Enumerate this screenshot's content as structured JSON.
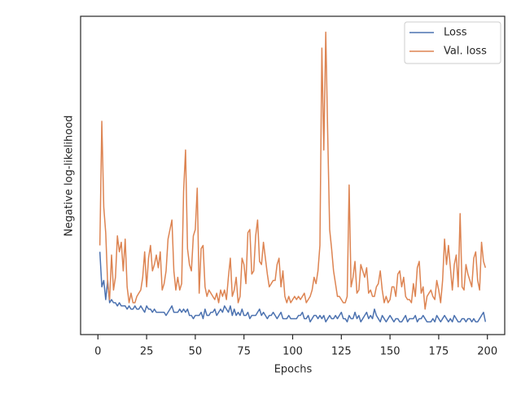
{
  "chart_data": {
    "type": "line",
    "xlabel": "Epochs",
    "ylabel": "Negative log-likelihood",
    "x": [
      1,
      2,
      3,
      4,
      5,
      6,
      7,
      8,
      9,
      10,
      11,
      12,
      13,
      14,
      15,
      16,
      17,
      18,
      19,
      20,
      21,
      22,
      23,
      24,
      25,
      26,
      27,
      28,
      29,
      30,
      31,
      32,
      33,
      34,
      35,
      36,
      37,
      38,
      39,
      40,
      41,
      42,
      43,
      44,
      45,
      46,
      47,
      48,
      49,
      50,
      51,
      52,
      53,
      54,
      55,
      56,
      57,
      58,
      59,
      60,
      61,
      62,
      63,
      64,
      65,
      66,
      67,
      68,
      69,
      70,
      71,
      72,
      73,
      74,
      75,
      76,
      77,
      78,
      79,
      80,
      81,
      82,
      83,
      84,
      85,
      86,
      87,
      88,
      89,
      90,
      91,
      92,
      93,
      94,
      95,
      96,
      97,
      98,
      99,
      100,
      101,
      102,
      103,
      104,
      105,
      106,
      107,
      108,
      109,
      110,
      111,
      112,
      113,
      114,
      115,
      116,
      117,
      118,
      119,
      120,
      121,
      122,
      123,
      124,
      125,
      126,
      127,
      128,
      129,
      130,
      131,
      132,
      133,
      134,
      135,
      136,
      137,
      138,
      139,
      140,
      141,
      142,
      143,
      144,
      145,
      146,
      147,
      148,
      149,
      150,
      151,
      152,
      153,
      154,
      155,
      156,
      157,
      158,
      159,
      160,
      161,
      162,
      163,
      164,
      165,
      166,
      167,
      168,
      169,
      170,
      171,
      172,
      173,
      174,
      175,
      176,
      177,
      178,
      179,
      180,
      181,
      182,
      183,
      184,
      185,
      186,
      187,
      188,
      189,
      190,
      191,
      192,
      193,
      194,
      195,
      196,
      197,
      198,
      199
    ],
    "series": [
      {
        "name": "Loss",
        "color": "#4c72b0",
        "values": [
          26,
          15,
          17,
          11,
          17,
          10,
          11,
          10,
          10,
          9,
          10,
          9,
          9,
          9,
          8,
          9,
          8,
          8,
          9,
          8,
          8,
          9,
          8,
          7,
          9,
          8,
          8,
          7,
          8,
          7,
          7,
          7,
          7,
          7,
          6,
          7,
          8,
          9,
          7,
          7,
          7,
          8,
          7,
          8,
          7,
          8,
          6,
          6,
          5,
          6,
          6,
          6,
          7,
          5,
          8,
          6,
          6,
          7,
          7,
          8,
          6,
          7,
          8,
          7,
          9,
          8,
          7,
          9,
          6,
          8,
          6,
          7,
          6,
          8,
          6,
          6,
          7,
          5,
          6,
          6,
          6,
          7,
          8,
          6,
          7,
          6,
          5,
          6,
          6,
          7,
          6,
          5,
          6,
          7,
          5,
          5,
          5,
          6,
          5,
          5,
          5,
          5,
          6,
          6,
          7,
          5,
          5,
          6,
          4,
          5,
          6,
          6,
          5,
          6,
          5,
          6,
          4,
          5,
          6,
          5,
          5,
          6,
          5,
          6,
          7,
          5,
          5,
          4,
          6,
          5,
          5,
          7,
          5,
          6,
          4,
          5,
          6,
          7,
          5,
          6,
          5,
          8,
          6,
          5,
          4,
          6,
          5,
          4,
          5,
          6,
          5,
          4,
          5,
          5,
          4,
          4,
          5,
          6,
          4,
          5,
          5,
          5,
          6,
          4,
          5,
          5,
          6,
          5,
          4,
          4,
          4,
          5,
          4,
          6,
          5,
          4,
          5,
          6,
          5,
          4,
          5,
          4,
          6,
          5,
          4,
          4,
          5,
          5,
          4,
          5,
          5,
          4,
          5,
          4,
          4,
          5,
          6,
          7,
          4
        ]
      },
      {
        "name": "Val. loss",
        "color": "#dd8452",
        "values": [
          28,
          67,
          40,
          32,
          16,
          11,
          25,
          14,
          18,
          31,
          26,
          29,
          20,
          30,
          15,
          10,
          13,
          10,
          10,
          12,
          13,
          14,
          18,
          26,
          15,
          24,
          28,
          20,
          22,
          25,
          21,
          26,
          14,
          16,
          20,
          30,
          33,
          36,
          20,
          14,
          18,
          14,
          16,
          45,
          58,
          27,
          22,
          20,
          31,
          33,
          46,
          13,
          27,
          28,
          15,
          12,
          14,
          13,
          12,
          11,
          13,
          10,
          14,
          12,
          14,
          11,
          18,
          24,
          12,
          14,
          18,
          10,
          12,
          24,
          22,
          16,
          32,
          33,
          19,
          20,
          31,
          36,
          23,
          22,
          29,
          24,
          19,
          15,
          16,
          17,
          17,
          22,
          24,
          15,
          20,
          12,
          10,
          12,
          10,
          11,
          12,
          11,
          12,
          11,
          12,
          13,
          10,
          11,
          12,
          14,
          18,
          16,
          20,
          28,
          90,
          58,
          95,
          63,
          33,
          27,
          20,
          16,
          12,
          12,
          11,
          10,
          10,
          12,
          47,
          15,
          18,
          23,
          13,
          14,
          22,
          20,
          18,
          21,
          13,
          14,
          12,
          12,
          15,
          16,
          20,
          14,
          10,
          12,
          10,
          11,
          15,
          15,
          12,
          19,
          20,
          15,
          18,
          12,
          11,
          11,
          10,
          16,
          12,
          21,
          23,
          13,
          15,
          8,
          12,
          13,
          14,
          12,
          11,
          17,
          14,
          10,
          17,
          30,
          22,
          28,
          21,
          14,
          22,
          25,
          15,
          38,
          15,
          14,
          22,
          19,
          17,
          15,
          24,
          26,
          17,
          14,
          29,
          23,
          21
        ]
      }
    ],
    "xlim": [
      -8.9,
      208.9
    ],
    "ylim": [
      0,
      100
    ],
    "xticks": [
      0,
      25,
      50,
      75,
      100,
      125,
      150,
      175,
      200
    ],
    "legend": "upper right"
  }
}
